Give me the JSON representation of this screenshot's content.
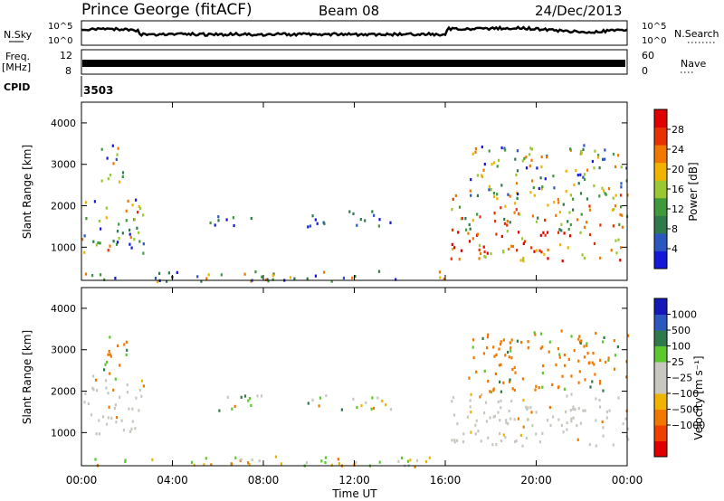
{
  "header": {
    "station": "Prince George (fitACF)",
    "beam": "Beam 08",
    "date": "24/Dec/2013"
  },
  "strip": {
    "nsky_label": "N.Sky",
    "nsky_ticks": [
      "10^5",
      "10^0"
    ],
    "nsearch_label": "N.Search",
    "nsearch_ticks": [
      "10^5",
      "10^0"
    ],
    "freq_label": [
      "Freq.",
      "[MHz]"
    ],
    "freq_ticks": [
      "12",
      "8"
    ],
    "nave_label": "Nave",
    "nave_ticks": [
      "60",
      "0"
    ],
    "cpid_label": "CPID",
    "cpid_value": "3503"
  },
  "colors": {
    "power": [
      "#1418d8",
      "#2c56c0",
      "#2f7a4a",
      "#3e9a3a",
      "#9ac832",
      "#f0b400",
      "#f07800",
      "#e83000",
      "#e00000"
    ],
    "velocity": [
      "#e00000",
      "#f04000",
      "#f07800",
      "#f0b400",
      "#c8c8c0",
      "#c8c8c0",
      "#5cc830",
      "#2f7a4a",
      "#2c56c0",
      "#1418b8"
    ]
  },
  "chart_data": [
    {
      "type": "heatmap",
      "panel": "power",
      "ylabel": "Slant Range [km]",
      "yticks": [
        "4000",
        "3000",
        "2000",
        "1000"
      ],
      "ylim": [
        200,
        4500
      ],
      "xlim": [
        0,
        24
      ],
      "colorbar_label": "Power [dB]",
      "colorbar_ticks": [
        "28",
        "24",
        "20",
        "16",
        "12",
        "8",
        "4"
      ],
      "colorbar_range": [
        0,
        32
      ],
      "regions": [
        {
          "t": [
            0,
            2.7
          ],
          "r": [
            800,
            2300
          ],
          "level": "mixed-high"
        },
        {
          "t": [
            0.8,
            2.0
          ],
          "r": [
            2500,
            3500
          ],
          "level": "mixed"
        },
        {
          "t": [
            5.6,
            8.0
          ],
          "r": [
            1500,
            1800
          ],
          "level": "low"
        },
        {
          "t": [
            9.8,
            13.6
          ],
          "r": [
            1500,
            1900
          ],
          "level": "low"
        },
        {
          "t": [
            16.2,
            24
          ],
          "r": [
            700,
            2400
          ],
          "level": "high"
        },
        {
          "t": [
            17.0,
            24
          ],
          "r": [
            2200,
            3500
          ],
          "level": "mixed"
        },
        {
          "t": [
            0,
            16
          ],
          "r": [
            200,
            450
          ],
          "level": "mixed"
        }
      ]
    },
    {
      "type": "heatmap",
      "panel": "velocity",
      "ylabel": "Slant Range [km]",
      "yticks": [
        "4000",
        "3000",
        "2000",
        "1000"
      ],
      "ylim": [
        200,
        4500
      ],
      "xlim": [
        0,
        24
      ],
      "xlabel": "Time UT",
      "xticks": [
        "00:00",
        "04:00",
        "08:00",
        "12:00",
        "16:00",
        "20:00",
        "00:00"
      ],
      "colorbar_label": "Velocity [m s⁻¹]",
      "colorbar_ticks": [
        "1000",
        "500",
        "100",
        "25",
        "−25",
        "−100",
        "−500",
        "−1000"
      ],
      "regions": [
        {
          "t": [
            0,
            2.7
          ],
          "r": [
            1000,
            2400
          ],
          "level": "ground"
        },
        {
          "t": [
            0.8,
            2.0
          ],
          "r": [
            2300,
            3500
          ],
          "level": "away"
        },
        {
          "t": [
            5.6,
            8.0
          ],
          "r": [
            1550,
            1950
          ],
          "level": "mixed"
        },
        {
          "t": [
            9.8,
            13.6
          ],
          "r": [
            1550,
            1950
          ],
          "level": "mixed"
        },
        {
          "t": [
            16.2,
            24
          ],
          "r": [
            700,
            2000
          ],
          "level": "ground"
        },
        {
          "t": [
            17.0,
            24
          ],
          "r": [
            2000,
            3500
          ],
          "level": "away"
        },
        {
          "t": [
            0,
            16
          ],
          "r": [
            200,
            450
          ],
          "level": "low"
        }
      ]
    }
  ]
}
